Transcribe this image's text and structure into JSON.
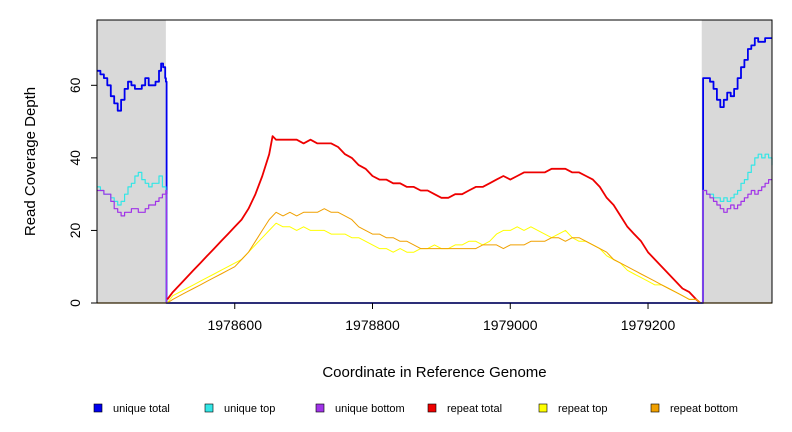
{
  "chart_data": {
    "type": "line",
    "title": "",
    "xlabel": "Coordinate in Reference Genome",
    "ylabel": "Read Coverage Depth",
    "xlim": [
      1978400,
      1979380
    ],
    "ylim": [
      0,
      78
    ],
    "x_ticks": [
      1978600,
      1978800,
      1979000,
      1979200
    ],
    "x_tick_labels": [
      "1978600",
      "1978800",
      "1979000",
      "1979200"
    ],
    "y_ticks": [
      0,
      20,
      40,
      60
    ],
    "y_tick_labels": [
      "0",
      "20",
      "40",
      "60"
    ],
    "shaded_regions": [
      {
        "from": 1978400,
        "to": 1978500,
        "color": "#d9d9d9"
      },
      {
        "from": 1979278,
        "to": 1979380,
        "color": "#d9d9d9"
      }
    ],
    "legend_position": "bottom",
    "series": [
      {
        "name": "unique total",
        "color": "#0000ee",
        "step": true,
        "width": 1.8,
        "x": [
          1978400,
          1978405,
          1978410,
          1978415,
          1978420,
          1978425,
          1978430,
          1978435,
          1978440,
          1978445,
          1978450,
          1978455,
          1978460,
          1978465,
          1978470,
          1978475,
          1978480,
          1978485,
          1978490,
          1978493,
          1978496,
          1978499,
          1978500,
          1978501,
          1979279,
          1979280,
          1979285,
          1979290,
          1979295,
          1979300,
          1979305,
          1979310,
          1979315,
          1979320,
          1979325,
          1979330,
          1979335,
          1979340,
          1979345,
          1979350,
          1979355,
          1979360,
          1979365,
          1979370,
          1979375,
          1979380
        ],
        "y": [
          64,
          63,
          62,
          60,
          57,
          55,
          53,
          56,
          59,
          61,
          60,
          59,
          59,
          60,
          62,
          60,
          60,
          61,
          64,
          66,
          65,
          62,
          61,
          0,
          0,
          62,
          62,
          61,
          59,
          56,
          54,
          56,
          58,
          57,
          59,
          62,
          65,
          67,
          70,
          71,
          73,
          72,
          72,
          73,
          73,
          73
        ]
      },
      {
        "name": "unique top",
        "color": "#33e6e6",
        "step": true,
        "width": 1.2,
        "x": [
          1978400,
          1978405,
          1978410,
          1978415,
          1978420,
          1978425,
          1978430,
          1978435,
          1978440,
          1978445,
          1978450,
          1978455,
          1978460,
          1978465,
          1978470,
          1978475,
          1978480,
          1978485,
          1978490,
          1978495,
          1978500,
          1978501,
          1979279,
          1979280,
          1979285,
          1979290,
          1979295,
          1979300,
          1979305,
          1979310,
          1979315,
          1979320,
          1979325,
          1979330,
          1979335,
          1979340,
          1979345,
          1979350,
          1979355,
          1979360,
          1979365,
          1979370,
          1979375,
          1979380
        ],
        "y": [
          32,
          31,
          30,
          30,
          29,
          28,
          27,
          28,
          30,
          32,
          33,
          35,
          36,
          34,
          33,
          32,
          33,
          33,
          35,
          32,
          30,
          0,
          0,
          31,
          30,
          30,
          29,
          29,
          28,
          29,
          28,
          29,
          30,
          31,
          33,
          34,
          36,
          38,
          40,
          41,
          40,
          41,
          40,
          38
        ],
        "note": ""
      },
      {
        "name": "unique bottom",
        "color": "#a033e8",
        "step": true,
        "width": 1.2,
        "x": [
          1978400,
          1978405,
          1978410,
          1978415,
          1978420,
          1978425,
          1978430,
          1978435,
          1978440,
          1978445,
          1978450,
          1978455,
          1978460,
          1978465,
          1978470,
          1978475,
          1978480,
          1978485,
          1978490,
          1978495,
          1978500,
          1978501,
          1979279,
          1979280,
          1979285,
          1979290,
          1979295,
          1979300,
          1979305,
          1979310,
          1979315,
          1979320,
          1979325,
          1979330,
          1979335,
          1979340,
          1979345,
          1979350,
          1979355,
          1979360,
          1979365,
          1979370,
          1979375,
          1979380
        ],
        "y": [
          31,
          31,
          30,
          30,
          28,
          26,
          25,
          24,
          25,
          25,
          26,
          26,
          25,
          25,
          26,
          27,
          27,
          28,
          29,
          30,
          31,
          0,
          0,
          31,
          30,
          29,
          28,
          27,
          26,
          25,
          26,
          27,
          26,
          27,
          28,
          29,
          30,
          31,
          30,
          31,
          32,
          33,
          34,
          34
        ]
      },
      {
        "name": "repeat total",
        "color": "#ee0000",
        "step": false,
        "width": 1.8,
        "x": [
          1978502,
          1978510,
          1978520,
          1978530,
          1978540,
          1978550,
          1978560,
          1978570,
          1978580,
          1978590,
          1978600,
          1978610,
          1978620,
          1978630,
          1978640,
          1978650,
          1978655,
          1978660,
          1978670,
          1978680,
          1978690,
          1978700,
          1978710,
          1978720,
          1978730,
          1978740,
          1978750,
          1978760,
          1978770,
          1978780,
          1978790,
          1978800,
          1978810,
          1978820,
          1978830,
          1978840,
          1978850,
          1978860,
          1978870,
          1978880,
          1978890,
          1978900,
          1978910,
          1978920,
          1978930,
          1978940,
          1978950,
          1978960,
          1978970,
          1978980,
          1978990,
          1979000,
          1979010,
          1979020,
          1979030,
          1979040,
          1979050,
          1979060,
          1979070,
          1979080,
          1979090,
          1979100,
          1979110,
          1979120,
          1979130,
          1979140,
          1979150,
          1979160,
          1979170,
          1979180,
          1979190,
          1979200,
          1979210,
          1979220,
          1979230,
          1979240,
          1979250,
          1979260,
          1979270,
          1979276
        ],
        "y": [
          1,
          3,
          5,
          7,
          9,
          11,
          13,
          15,
          17,
          19,
          21,
          23,
          26,
          30,
          35,
          41,
          46,
          45,
          45,
          45,
          45,
          44,
          45,
          44,
          44,
          44,
          43,
          41,
          40,
          38,
          37,
          35,
          34,
          34,
          33,
          33,
          32,
          32,
          31,
          31,
          30,
          29,
          29,
          30,
          30,
          31,
          32,
          32,
          33,
          34,
          35,
          34,
          35,
          36,
          36,
          36,
          36,
          37,
          37,
          37,
          36,
          36,
          35,
          34,
          32,
          29,
          27,
          24,
          21,
          19,
          17,
          14,
          12,
          10,
          8,
          6,
          4,
          3,
          1,
          0
        ]
      },
      {
        "name": "repeat top",
        "color": "#ffff00",
        "step": false,
        "width": 1.0,
        "x": [
          1978502,
          1978510,
          1978520,
          1978530,
          1978540,
          1978550,
          1978560,
          1978570,
          1978580,
          1978590,
          1978600,
          1978610,
          1978620,
          1978630,
          1978640,
          1978650,
          1978660,
          1978670,
          1978680,
          1978690,
          1978700,
          1978710,
          1978720,
          1978730,
          1978740,
          1978750,
          1978760,
          1978770,
          1978780,
          1978790,
          1978800,
          1978810,
          1978820,
          1978830,
          1978840,
          1978850,
          1978860,
          1978870,
          1978880,
          1978890,
          1978900,
          1978910,
          1978920,
          1978930,
          1978940,
          1978950,
          1978960,
          1978970,
          1978980,
          1978990,
          1979000,
          1979010,
          1979020,
          1979030,
          1979040,
          1979050,
          1979060,
          1979070,
          1979080,
          1979090,
          1979100,
          1979110,
          1979120,
          1979130,
          1979140,
          1979150,
          1979160,
          1979170,
          1979180,
          1979190,
          1979200,
          1979210,
          1979220,
          1979230,
          1979240,
          1979250,
          1979260,
          1979270,
          1979276
        ],
        "y": [
          0,
          2,
          3,
          4,
          5,
          6,
          7,
          8,
          9,
          10,
          11,
          12,
          14,
          16,
          18,
          20,
          22,
          21,
          21,
          20,
          21,
          20,
          20,
          20,
          19,
          19,
          19,
          18,
          18,
          17,
          16,
          15,
          15,
          14,
          15,
          14,
          14,
          15,
          15,
          16,
          15,
          15,
          16,
          16,
          17,
          17,
          16,
          17,
          19,
          20,
          20,
          21,
          20,
          21,
          20,
          19,
          18,
          19,
          20,
          18,
          17,
          17,
          16,
          15,
          13,
          12,
          11,
          9,
          8,
          7,
          6,
          5,
          5,
          4,
          3,
          2,
          1,
          1,
          0
        ]
      },
      {
        "name": "repeat bottom",
        "color": "#f0a000",
        "step": false,
        "width": 1.0,
        "x": [
          1978502,
          1978510,
          1978520,
          1978530,
          1978540,
          1978550,
          1978560,
          1978570,
          1978580,
          1978590,
          1978600,
          1978610,
          1978620,
          1978630,
          1978640,
          1978650,
          1978660,
          1978670,
          1978680,
          1978690,
          1978700,
          1978710,
          1978720,
          1978730,
          1978740,
          1978750,
          1978760,
          1978770,
          1978780,
          1978790,
          1978800,
          1978810,
          1978820,
          1978830,
          1978840,
          1978850,
          1978860,
          1978870,
          1978880,
          1978890,
          1978900,
          1978910,
          1978920,
          1978930,
          1978940,
          1978950,
          1978960,
          1978970,
          1978980,
          1978990,
          1979000,
          1979010,
          1979020,
          1979030,
          1979040,
          1979050,
          1979060,
          1979070,
          1979080,
          1979090,
          1979100,
          1979110,
          1979120,
          1979130,
          1979140,
          1979150,
          1979160,
          1979170,
          1979180,
          1979190,
          1979200,
          1979210,
          1979220,
          1979230,
          1979240,
          1979250,
          1979260,
          1979270,
          1979276
        ],
        "y": [
          0,
          1,
          2,
          3,
          4,
          5,
          6,
          7,
          8,
          9,
          10,
          12,
          14,
          17,
          20,
          23,
          25,
          24,
          25,
          24,
          25,
          25,
          25,
          26,
          25,
          25,
          24,
          23,
          21,
          20,
          19,
          19,
          18,
          18,
          17,
          17,
          16,
          15,
          15,
          15,
          15,
          15,
          15,
          15,
          15,
          15,
          16,
          16,
          16,
          15,
          16,
          16,
          16,
          17,
          17,
          17,
          18,
          18,
          17,
          18,
          18,
          17,
          16,
          15,
          14,
          12,
          11,
          10,
          9,
          8,
          7,
          6,
          5,
          4,
          3,
          2,
          1,
          1,
          0
        ]
      },
      {
        "name": "",
        "color": "#6b6bff",
        "step": false,
        "width": 1.2,
        "x": [
          1978501,
          1979279
        ],
        "y": [
          0,
          0
        ]
      },
      {
        "name": "",
        "color": "#f0a000",
        "step": false,
        "width": 1.2,
        "x": [
          1978400,
          1978501
        ],
        "y": [
          0,
          0
        ]
      },
      {
        "name": "",
        "color": "#f0a000",
        "step": false,
        "width": 1.2,
        "x": [
          1979279,
          1979380
        ],
        "y": [
          0,
          0
        ]
      }
    ],
    "legend": [
      {
        "label": "unique total",
        "color": "#0000ee"
      },
      {
        "label": "unique top",
        "color": "#33e6e6"
      },
      {
        "label": "unique bottom",
        "color": "#a033e8"
      },
      {
        "label": "repeat total",
        "color": "#ee0000"
      },
      {
        "label": "repeat top",
        "color": "#ffff00"
      },
      {
        "label": "repeat bottom",
        "color": "#f0a000"
      }
    ]
  }
}
